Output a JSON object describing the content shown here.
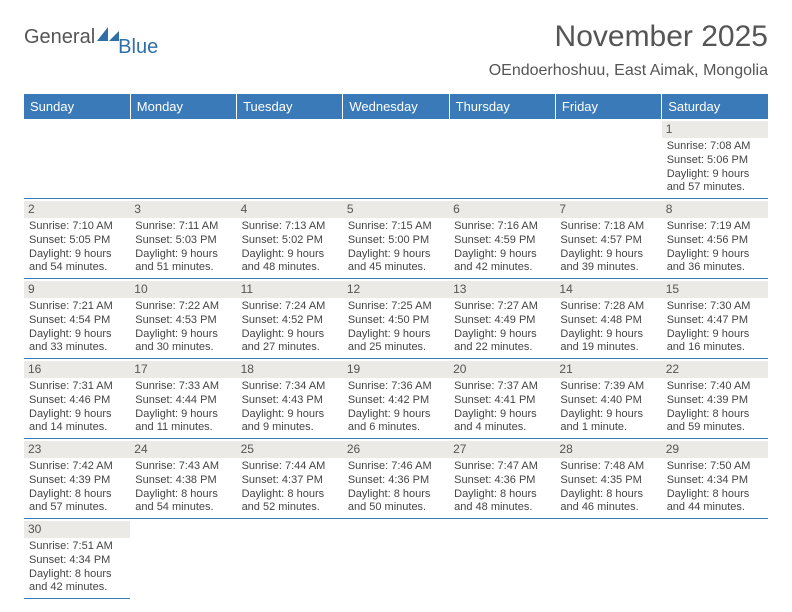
{
  "logo": {
    "text1": "General",
    "text2": "Blue"
  },
  "title": "November 2025",
  "location": "OEndoerhoshuu, East Aimak, Mongolia",
  "colors": {
    "header_bg": "#3a7ab8",
    "header_text": "#ffffff",
    "daynum_bg": "#eceae6",
    "text": "#555555",
    "border": "#3a7ab8"
  },
  "day_headers": [
    "Sunday",
    "Monday",
    "Tuesday",
    "Wednesday",
    "Thursday",
    "Friday",
    "Saturday"
  ],
  "weeks": [
    [
      null,
      null,
      null,
      null,
      null,
      null,
      {
        "n": "1",
        "sunrise": "7:08 AM",
        "sunset": "5:06 PM",
        "day_h": "9",
        "day_m": "57"
      }
    ],
    [
      {
        "n": "2",
        "sunrise": "7:10 AM",
        "sunset": "5:05 PM",
        "day_h": "9",
        "day_m": "54"
      },
      {
        "n": "3",
        "sunrise": "7:11 AM",
        "sunset": "5:03 PM",
        "day_h": "9",
        "day_m": "51"
      },
      {
        "n": "4",
        "sunrise": "7:13 AM",
        "sunset": "5:02 PM",
        "day_h": "9",
        "day_m": "48"
      },
      {
        "n": "5",
        "sunrise": "7:15 AM",
        "sunset": "5:00 PM",
        "day_h": "9",
        "day_m": "45"
      },
      {
        "n": "6",
        "sunrise": "7:16 AM",
        "sunset": "4:59 PM",
        "day_h": "9",
        "day_m": "42"
      },
      {
        "n": "7",
        "sunrise": "7:18 AM",
        "sunset": "4:57 PM",
        "day_h": "9",
        "day_m": "39"
      },
      {
        "n": "8",
        "sunrise": "7:19 AM",
        "sunset": "4:56 PM",
        "day_h": "9",
        "day_m": "36"
      }
    ],
    [
      {
        "n": "9",
        "sunrise": "7:21 AM",
        "sunset": "4:54 PM",
        "day_h": "9",
        "day_m": "33"
      },
      {
        "n": "10",
        "sunrise": "7:22 AM",
        "sunset": "4:53 PM",
        "day_h": "9",
        "day_m": "30"
      },
      {
        "n": "11",
        "sunrise": "7:24 AM",
        "sunset": "4:52 PM",
        "day_h": "9",
        "day_m": "27"
      },
      {
        "n": "12",
        "sunrise": "7:25 AM",
        "sunset": "4:50 PM",
        "day_h": "9",
        "day_m": "25"
      },
      {
        "n": "13",
        "sunrise": "7:27 AM",
        "sunset": "4:49 PM",
        "day_h": "9",
        "day_m": "22"
      },
      {
        "n": "14",
        "sunrise": "7:28 AM",
        "sunset": "4:48 PM",
        "day_h": "9",
        "day_m": "19"
      },
      {
        "n": "15",
        "sunrise": "7:30 AM",
        "sunset": "4:47 PM",
        "day_h": "9",
        "day_m": "16"
      }
    ],
    [
      {
        "n": "16",
        "sunrise": "7:31 AM",
        "sunset": "4:46 PM",
        "day_h": "9",
        "day_m": "14"
      },
      {
        "n": "17",
        "sunrise": "7:33 AM",
        "sunset": "4:44 PM",
        "day_h": "9",
        "day_m": "11"
      },
      {
        "n": "18",
        "sunrise": "7:34 AM",
        "sunset": "4:43 PM",
        "day_h": "9",
        "day_m": "9"
      },
      {
        "n": "19",
        "sunrise": "7:36 AM",
        "sunset": "4:42 PM",
        "day_h": "9",
        "day_m": "6"
      },
      {
        "n": "20",
        "sunrise": "7:37 AM",
        "sunset": "4:41 PM",
        "day_h": "9",
        "day_m": "4"
      },
      {
        "n": "21",
        "sunrise": "7:39 AM",
        "sunset": "4:40 PM",
        "day_h": "9",
        "day_m": "1"
      },
      {
        "n": "22",
        "sunrise": "7:40 AM",
        "sunset": "4:39 PM",
        "day_h": "8",
        "day_m": "59"
      }
    ],
    [
      {
        "n": "23",
        "sunrise": "7:42 AM",
        "sunset": "4:39 PM",
        "day_h": "8",
        "day_m": "57"
      },
      {
        "n": "24",
        "sunrise": "7:43 AM",
        "sunset": "4:38 PM",
        "day_h": "8",
        "day_m": "54"
      },
      {
        "n": "25",
        "sunrise": "7:44 AM",
        "sunset": "4:37 PM",
        "day_h": "8",
        "day_m": "52"
      },
      {
        "n": "26",
        "sunrise": "7:46 AM",
        "sunset": "4:36 PM",
        "day_h": "8",
        "day_m": "50"
      },
      {
        "n": "27",
        "sunrise": "7:47 AM",
        "sunset": "4:36 PM",
        "day_h": "8",
        "day_m": "48"
      },
      {
        "n": "28",
        "sunrise": "7:48 AM",
        "sunset": "4:35 PM",
        "day_h": "8",
        "day_m": "46"
      },
      {
        "n": "29",
        "sunrise": "7:50 AM",
        "sunset": "4:34 PM",
        "day_h": "8",
        "day_m": "44"
      }
    ],
    [
      {
        "n": "30",
        "sunrise": "7:51 AM",
        "sunset": "4:34 PM",
        "day_h": "8",
        "day_m": "42"
      },
      null,
      null,
      null,
      null,
      null,
      null
    ]
  ],
  "labels": {
    "sunrise": "Sunrise:",
    "sunset": "Sunset:",
    "daylight": "Daylight:",
    "hours": "hours",
    "and": "and",
    "minutes": "minutes.",
    "minute": "minute."
  }
}
